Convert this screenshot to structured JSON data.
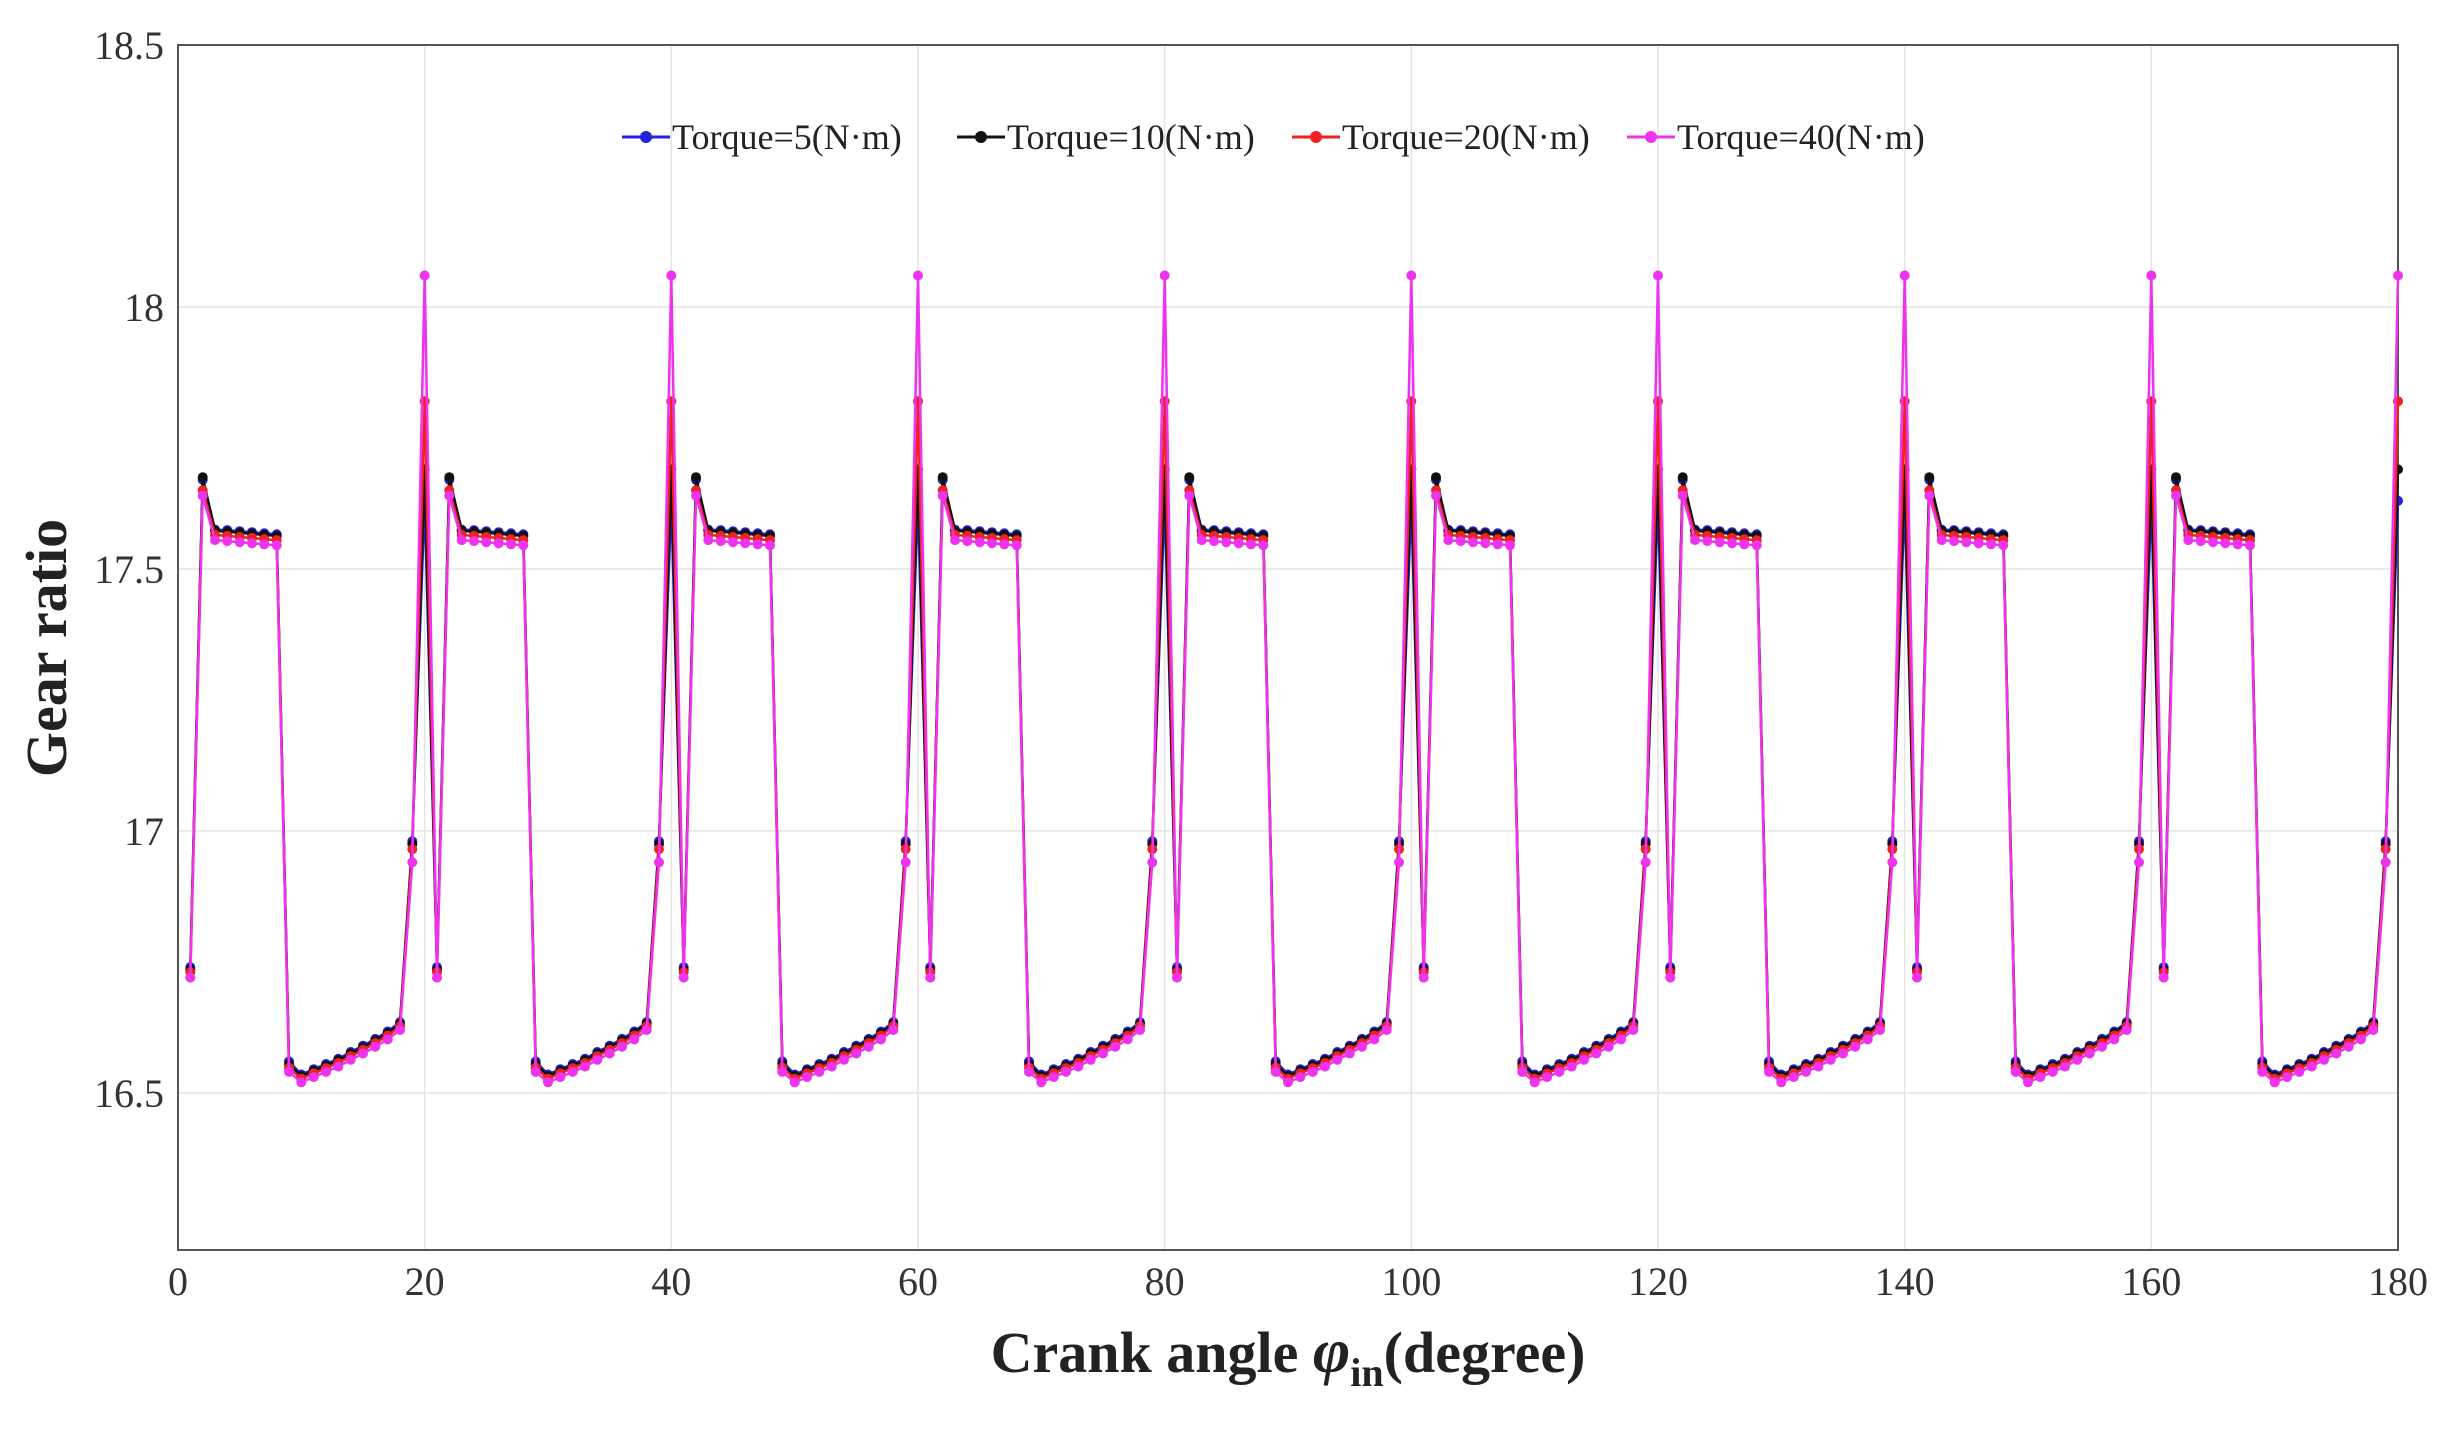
{
  "chart_data": {
    "type": "line",
    "title": "",
    "xlabel_main": "Crank angle ",
    "xlabel_symbol": "φ",
    "xlabel_sub": "in",
    "xlabel_unit": "(degree)",
    "ylabel": "Gear ratio",
    "xlim": [
      0,
      180
    ],
    "ylim": [
      16.2,
      18.5
    ],
    "xticks": [
      0,
      20,
      40,
      60,
      80,
      100,
      120,
      140,
      160,
      180
    ],
    "yticks": [
      16.5,
      17,
      17.5,
      18,
      18.5
    ],
    "ytick_labels": [
      "16.5",
      "17",
      "17.5",
      "18",
      "18.5"
    ],
    "grid": true,
    "legend_position": "top",
    "period_deg": 20,
    "cycle_phase_deg": [
      1,
      2,
      3,
      4,
      5,
      6,
      7,
      8,
      9,
      10,
      11,
      12,
      13,
      14,
      15,
      16,
      17,
      18,
      19,
      20
    ],
    "series": [
      {
        "name": "Torque=5(N·m)",
        "color": "#2222dd",
        "cycle_values": [
          16.74,
          17.67,
          17.575,
          17.574,
          17.572,
          17.57,
          17.568,
          17.566,
          16.56,
          16.535,
          16.545,
          16.555,
          16.565,
          16.578,
          16.59,
          16.603,
          16.617,
          16.635,
          16.98,
          17.63
        ]
      },
      {
        "name": "Torque=10(N·m)",
        "color": "#111111",
        "cycle_values": [
          16.735,
          17.675,
          17.573,
          17.571,
          17.569,
          17.567,
          17.565,
          17.563,
          16.555,
          16.532,
          16.542,
          16.552,
          16.562,
          16.575,
          16.587,
          16.6,
          16.614,
          16.632,
          16.975,
          17.69
        ]
      },
      {
        "name": "Torque=20(N·m)",
        "color": "#ee2222",
        "cycle_values": [
          16.73,
          17.65,
          17.565,
          17.563,
          17.561,
          17.559,
          17.557,
          17.555,
          16.548,
          16.527,
          16.537,
          16.547,
          16.557,
          16.57,
          16.582,
          16.595,
          16.609,
          16.627,
          16.965,
          17.82
        ]
      },
      {
        "name": "Torque=40(N·m)",
        "color": "#ee33ee",
        "cycle_values": [
          16.72,
          17.64,
          17.555,
          17.553,
          17.551,
          17.549,
          17.547,
          17.545,
          16.54,
          16.52,
          16.53,
          16.54,
          16.55,
          16.563,
          16.575,
          16.588,
          16.602,
          16.62,
          16.94,
          18.06
        ]
      }
    ]
  }
}
